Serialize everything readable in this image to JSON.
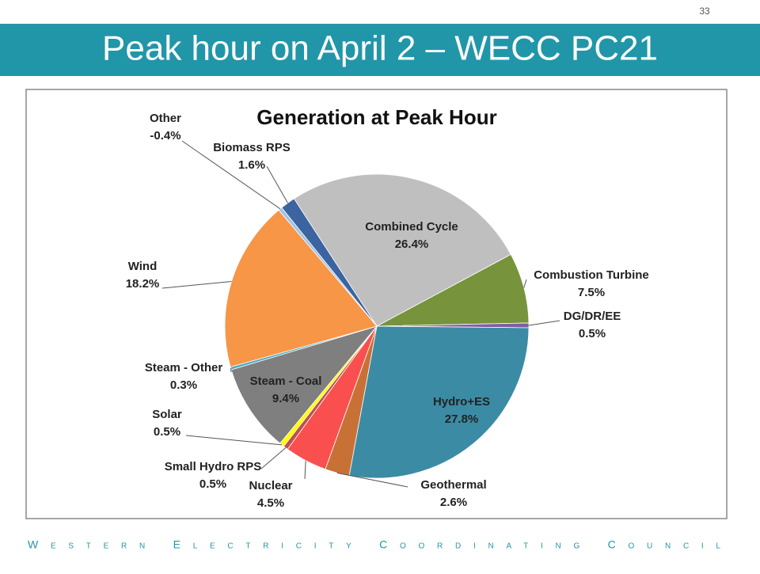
{
  "slide": {
    "title": "Peak hour on April 2 – WECC PC21",
    "page_number": "33",
    "footer": "Western Electricity Coordinating Council"
  },
  "chart_data": {
    "type": "pie",
    "title": "Generation at Peak Hour",
    "categories": [
      "Combined Cycle",
      "Combustion Turbine",
      "DG/DR/EE",
      "Hydro+ES",
      "Geothermal",
      "Nuclear",
      "Small Hydro RPS",
      "Solar",
      "Steam - Coal",
      "Steam - Other",
      "Wind",
      "Other",
      "Biomass RPS"
    ],
    "values": [
      26.4,
      7.5,
      0.5,
      27.8,
      2.6,
      4.5,
      0.5,
      0.5,
      9.4,
      0.3,
      18.2,
      -0.4,
      1.6
    ],
    "value_labels": [
      "26.4%",
      "7.5%",
      "0.5%",
      "27.8%",
      "2.6%",
      "4.5%",
      "0.5%",
      "0.5%",
      "9.4%",
      "0.3%",
      "18.2%",
      "-0.4%",
      "1.6%"
    ],
    "colors": [
      "#bfbfbf",
      "#77933c",
      "#7f5fa0",
      "#3b8ba5",
      "#c87137",
      "#f9504f",
      "#c0504d",
      "#ffff00",
      "#7f7f7f",
      "#4bacc6",
      "#f79646",
      "#9dc3e6",
      "#3b64a0"
    ]
  }
}
